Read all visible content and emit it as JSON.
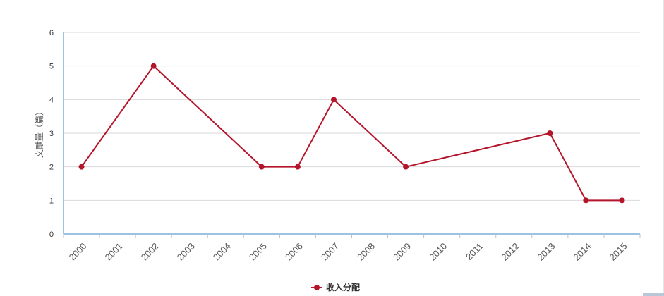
{
  "chart_data": {
    "type": "line",
    "ylabel": "文献量（篇）",
    "categories": [
      "2000",
      "2001",
      "2002",
      "2003",
      "2004",
      "2005",
      "2006",
      "2007",
      "2008",
      "2009",
      "2010",
      "2011",
      "2012",
      "2013",
      "2014",
      "2015"
    ],
    "series": [
      {
        "name": "收入分配",
        "color": "#b5152b",
        "points": [
          {
            "x": "2000",
            "y": 2
          },
          {
            "x": "2002",
            "y": 5
          },
          {
            "x": "2005",
            "y": 2
          },
          {
            "x": "2006",
            "y": 2
          },
          {
            "x": "2007",
            "y": 4
          },
          {
            "x": "2009",
            "y": 2
          },
          {
            "x": "2013",
            "y": 3
          },
          {
            "x": "2014",
            "y": 1
          },
          {
            "x": "2015",
            "y": 1
          }
        ]
      }
    ],
    "ylim": [
      0,
      6
    ],
    "yticks": [
      0,
      1,
      2,
      3,
      4,
      5,
      6
    ],
    "grid": true,
    "legend_position": "bottom-center",
    "axis_color": "#3a87c4",
    "grid_color": "#d9d9d9"
  }
}
